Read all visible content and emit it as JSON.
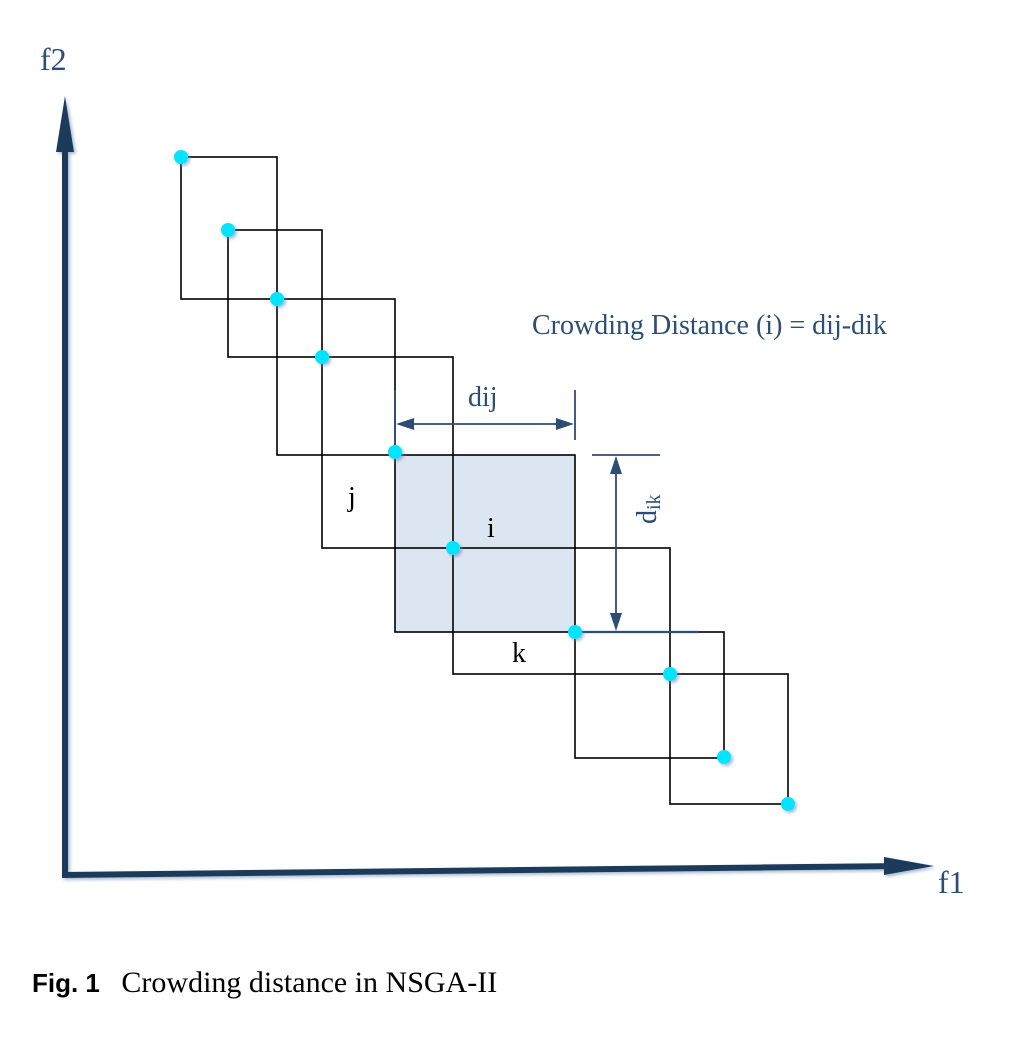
{
  "axes": {
    "y_label": "f2",
    "x_label": "f1"
  },
  "formula": "Crowding Distance (i) = dij-dik",
  "dimensions": {
    "horizontal": "dij",
    "vertical_main": "d",
    "vertical_sub": "ik"
  },
  "point_labels": {
    "j": "j",
    "i": "i",
    "k": "k"
  },
  "caption": {
    "label": "Fig. 1",
    "text": "Crowding distance in NSGA-II"
  },
  "colors": {
    "axis": "#1f3a5a",
    "text_blue": "#2c4d74",
    "point": "#00e5ff",
    "cuboid_fill": "#dce6f2",
    "line": "#000000"
  }
}
